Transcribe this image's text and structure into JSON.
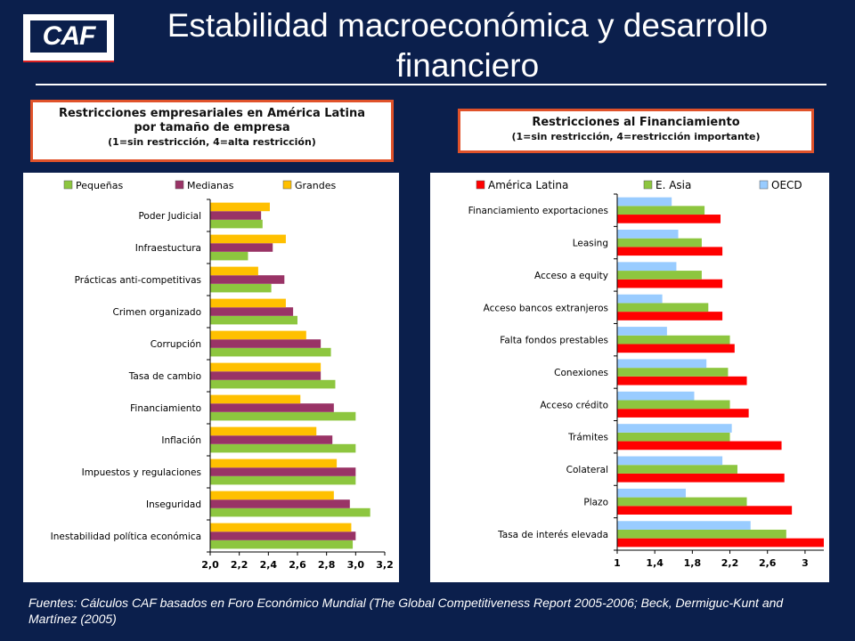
{
  "logo": {
    "text": "CAF"
  },
  "title": "Estabilidad macroeconómica y desarrollo financiero",
  "left_box": {
    "line1": "Restricciones empresariales en América Latina",
    "line2": "por tamaño de empresa",
    "line3": "(1=sin restricción, 4=alta restricción)"
  },
  "right_box": {
    "line1": "Restricciones al Financiamiento",
    "line2": "(1=sin restricción, 4=restricción importante)"
  },
  "source": "Fuentes: Cálculos CAF basados en Foro Económico Mundial (The Global Competitiveness Report 2005-2006; Beck, Dermiguc-Kunt and Martínez (2005)",
  "chart_data": [
    {
      "type": "bar",
      "orientation": "horizontal",
      "categories": [
        "Poder Judicial",
        "Infraestuctura",
        "Prácticas anti-competitivas",
        "Crimen organizado",
        "Corrupción",
        "Tasa de cambio",
        "Financiamiento",
        "Inflación",
        "Impuestos y regulaciones",
        "Inseguridad",
        "Inestabilidad política económica"
      ],
      "series": [
        {
          "name": "Pequeñas",
          "color": "#8dc63f",
          "values": [
            2.36,
            2.26,
            2.42,
            2.6,
            2.83,
            2.86,
            3.0,
            3.0,
            3.0,
            3.1,
            2.98
          ]
        },
        {
          "name": "Medianas",
          "color": "#993366",
          "values": [
            2.35,
            2.43,
            2.51,
            2.57,
            2.76,
            2.76,
            2.85,
            2.84,
            3.0,
            2.96,
            3.0
          ]
        },
        {
          "name": "Grandes",
          "color": "#ffc000",
          "values": [
            2.41,
            2.52,
            2.33,
            2.52,
            2.66,
            2.76,
            2.62,
            2.73,
            2.87,
            2.85,
            2.97
          ]
        }
      ],
      "xlim": [
        2.0,
        3.2
      ],
      "xticks": [
        "2,0",
        "2,2",
        "2,4",
        "2,6",
        "2,8",
        "3,0",
        "3,2"
      ],
      "legend_position": "top",
      "grid": false
    },
    {
      "type": "bar",
      "orientation": "horizontal",
      "categories": [
        "Financiamiento exportaciones",
        "Leasing",
        "Acceso a equity",
        "Acceso bancos extranjeros",
        "Falta fondos prestables",
        "Conexiones",
        "Acceso crédito",
        "Trámites",
        "Colateral",
        "Plazo",
        "Tasa de interés elevada"
      ],
      "series": [
        {
          "name": "América Latina",
          "color": "#ff0000",
          "values": [
            2.1,
            2.12,
            2.12,
            2.12,
            2.25,
            2.38,
            2.4,
            2.75,
            2.78,
            2.86,
            3.2
          ]
        },
        {
          "name": "E. Asia",
          "color": "#8dc63f",
          "values": [
            1.93,
            1.9,
            1.9,
            1.97,
            2.2,
            2.18,
            2.2,
            2.2,
            2.28,
            2.38,
            2.8
          ]
        },
        {
          "name": "OECD",
          "color": "#99ccff",
          "values": [
            1.58,
            1.65,
            1.63,
            1.48,
            1.53,
            1.95,
            1.82,
            2.22,
            2.12,
            1.73,
            2.42
          ]
        }
      ],
      "xlim": [
        1.0,
        3.2
      ],
      "xticks": [
        "1",
        "1,4",
        "1,8",
        "2,2",
        "2,6",
        "3"
      ],
      "legend_position": "top",
      "grid": false
    }
  ]
}
